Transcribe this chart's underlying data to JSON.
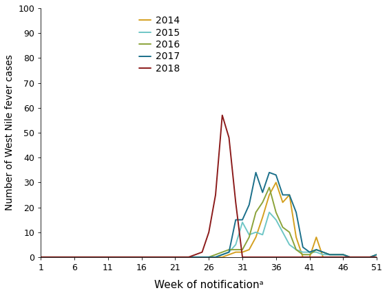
{
  "title": "",
  "xlabel": "Week of notificationᵃ",
  "ylabel": "Number of West Nile fever cases",
  "xlim": [
    1,
    51
  ],
  "ylim": [
    0,
    100
  ],
  "yticks": [
    0,
    10,
    20,
    30,
    40,
    50,
    60,
    70,
    80,
    90,
    100
  ],
  "xticks": [
    1,
    6,
    11,
    16,
    21,
    26,
    31,
    36,
    41,
    46,
    51
  ],
  "series": {
    "2014": {
      "color": "#D4A020",
      "weeks": [
        1,
        2,
        3,
        4,
        5,
        6,
        7,
        8,
        9,
        10,
        11,
        12,
        13,
        14,
        15,
        16,
        17,
        18,
        19,
        20,
        21,
        22,
        23,
        24,
        25,
        26,
        27,
        28,
        29,
        30,
        31,
        32,
        33,
        34,
        35,
        36,
        37,
        38,
        39,
        40,
        41,
        42,
        43,
        44,
        45,
        46,
        47,
        48,
        49,
        50,
        51
      ],
      "values": [
        0,
        0,
        0,
        0,
        0,
        0,
        0,
        0,
        0,
        0,
        0,
        0,
        0,
        0,
        0,
        0,
        0,
        0,
        0,
        0,
        0,
        0,
        0,
        0,
        0,
        0,
        0,
        0,
        1,
        2,
        2,
        3,
        8,
        16,
        25,
        30,
        22,
        25,
        8,
        0,
        0,
        8,
        0,
        0,
        0,
        0,
        0,
        0,
        0,
        0,
        0
      ]
    },
    "2015": {
      "color": "#6EC6C6",
      "weeks": [
        1,
        2,
        3,
        4,
        5,
        6,
        7,
        8,
        9,
        10,
        11,
        12,
        13,
        14,
        15,
        16,
        17,
        18,
        19,
        20,
        21,
        22,
        23,
        24,
        25,
        26,
        27,
        28,
        29,
        30,
        31,
        32,
        33,
        34,
        35,
        36,
        37,
        38,
        39,
        40,
        41,
        42,
        43,
        44,
        45,
        46,
        47,
        48,
        49,
        50,
        51
      ],
      "values": [
        0,
        0,
        0,
        0,
        0,
        0,
        0,
        0,
        0,
        0,
        0,
        0,
        0,
        0,
        0,
        0,
        0,
        0,
        0,
        0,
        0,
        0,
        0,
        0,
        0,
        0,
        0,
        1,
        2,
        5,
        14,
        9,
        10,
        9,
        18,
        15,
        10,
        5,
        3,
        2,
        2,
        2,
        1,
        1,
        1,
        1,
        0,
        0,
        0,
        0,
        1
      ]
    },
    "2016": {
      "color": "#8BA33A",
      "weeks": [
        1,
        2,
        3,
        4,
        5,
        6,
        7,
        8,
        9,
        10,
        11,
        12,
        13,
        14,
        15,
        16,
        17,
        18,
        19,
        20,
        21,
        22,
        23,
        24,
        25,
        26,
        27,
        28,
        29,
        30,
        31,
        32,
        33,
        34,
        35,
        36,
        37,
        38,
        39,
        40,
        41,
        42,
        43,
        44,
        45,
        46,
        47,
        48,
        49,
        50,
        51
      ],
      "values": [
        0,
        0,
        0,
        0,
        0,
        0,
        0,
        0,
        0,
        0,
        0,
        0,
        0,
        0,
        0,
        0,
        0,
        0,
        0,
        0,
        0,
        0,
        0,
        0,
        0,
        0,
        1,
        2,
        3,
        3,
        3,
        8,
        18,
        22,
        28,
        18,
        12,
        10,
        3,
        1,
        1,
        3,
        2,
        1,
        1,
        1,
        0,
        0,
        0,
        0,
        1
      ]
    },
    "2017": {
      "color": "#1A6F8A",
      "weeks": [
        1,
        2,
        3,
        4,
        5,
        6,
        7,
        8,
        9,
        10,
        11,
        12,
        13,
        14,
        15,
        16,
        17,
        18,
        19,
        20,
        21,
        22,
        23,
        24,
        25,
        26,
        27,
        28,
        29,
        30,
        31,
        32,
        33,
        34,
        35,
        36,
        37,
        38,
        39,
        40,
        41,
        42,
        43,
        44,
        45,
        46,
        47,
        48,
        49,
        50,
        51
      ],
      "values": [
        0,
        0,
        0,
        0,
        0,
        0,
        0,
        0,
        0,
        0,
        0,
        0,
        0,
        0,
        0,
        0,
        0,
        0,
        0,
        0,
        0,
        0,
        0,
        0,
        0,
        0,
        0,
        1,
        2,
        15,
        15,
        21,
        34,
        26,
        34,
        33,
        25,
        25,
        18,
        4,
        2,
        3,
        2,
        1,
        1,
        1,
        0,
        0,
        0,
        0,
        1
      ]
    },
    "2018": {
      "color": "#8B1A1A",
      "weeks": [
        1,
        2,
        3,
        4,
        5,
        6,
        7,
        8,
        9,
        10,
        11,
        12,
        13,
        14,
        15,
        16,
        17,
        18,
        19,
        20,
        21,
        22,
        23,
        24,
        25,
        26,
        27,
        28,
        29,
        30,
        31,
        32,
        33,
        34,
        35,
        36,
        37,
        38,
        39,
        40,
        41,
        42,
        43,
        44,
        45,
        46,
        47,
        48,
        49,
        50,
        51
      ],
      "values": [
        0,
        0,
        0,
        0,
        0,
        0,
        0,
        0,
        0,
        0,
        0,
        0,
        0,
        0,
        0,
        0,
        0,
        0,
        0,
        0,
        0,
        0,
        0,
        1,
        2,
        10,
        25,
        57,
        48,
        22,
        0,
        0,
        0,
        0,
        0,
        0,
        0,
        0,
        0,
        0,
        0,
        0,
        0,
        0,
        0,
        0,
        0,
        0,
        0,
        0,
        0
      ]
    }
  },
  "legend_order": [
    "2014",
    "2015",
    "2016",
    "2017",
    "2018"
  ],
  "background_color": "#ffffff",
  "linewidth": 1.4
}
